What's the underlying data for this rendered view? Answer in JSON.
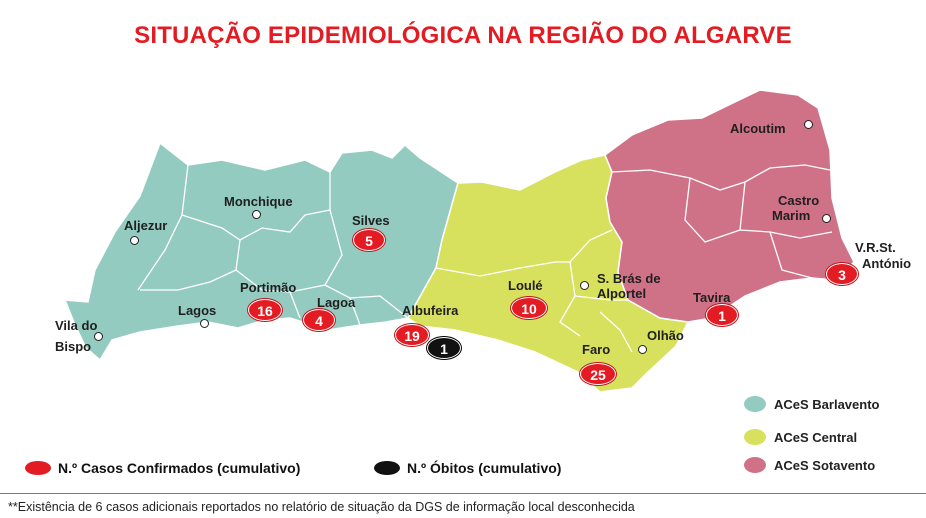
{
  "title": "SITUAÇÃO EPIDEMIOLÓGICA NA REGIÃO DO ALGARVE",
  "colors": {
    "barlavento": "#93cbc1",
    "central": "#d7e15d",
    "sotavento": "#cf7288",
    "confirmed": "#e31b23",
    "deaths": "#111111"
  },
  "towns": {
    "aljezur": "Aljezur",
    "monchique": "Monchique",
    "silves": "Silves",
    "vila_do_bispo_1": "Vila do",
    "vila_do_bispo_2": "Bispo",
    "lagos": "Lagos",
    "portimao": "Portimão",
    "lagoa": "Lagoa",
    "albufeira": "Albufeira",
    "loule": "Loulé",
    "sbras_1": "S. Brás de",
    "sbras_2": "Alportel",
    "faro": "Faro",
    "olhao": "Olhão",
    "tavira": "Tavira",
    "alcoutim": "Alcoutim",
    "castro_marim_1": "Castro",
    "castro_marim_2": "Marim",
    "vrsa_1": "V.R.St.",
    "vrsa_2": "António"
  },
  "cases": {
    "silves": "5",
    "portimao": "16",
    "lagoa": "4",
    "albufeira": "19",
    "loule": "10",
    "faro": "25",
    "tavira": "1",
    "vrsa": "3"
  },
  "deaths": {
    "albufeira": "1"
  },
  "legend": {
    "barlavento": "ACeS Barlavento",
    "central": "ACeS Central",
    "sotavento": "ACeS Sotavento",
    "confirmed": "N.º Casos Confirmados (cumulativo)",
    "deaths": "N.º Óbitos (cumulativo)"
  },
  "footnote": "**Existência de 6 casos adicionais reportados no relatório de situação da DGS de informação local desconhecida"
}
